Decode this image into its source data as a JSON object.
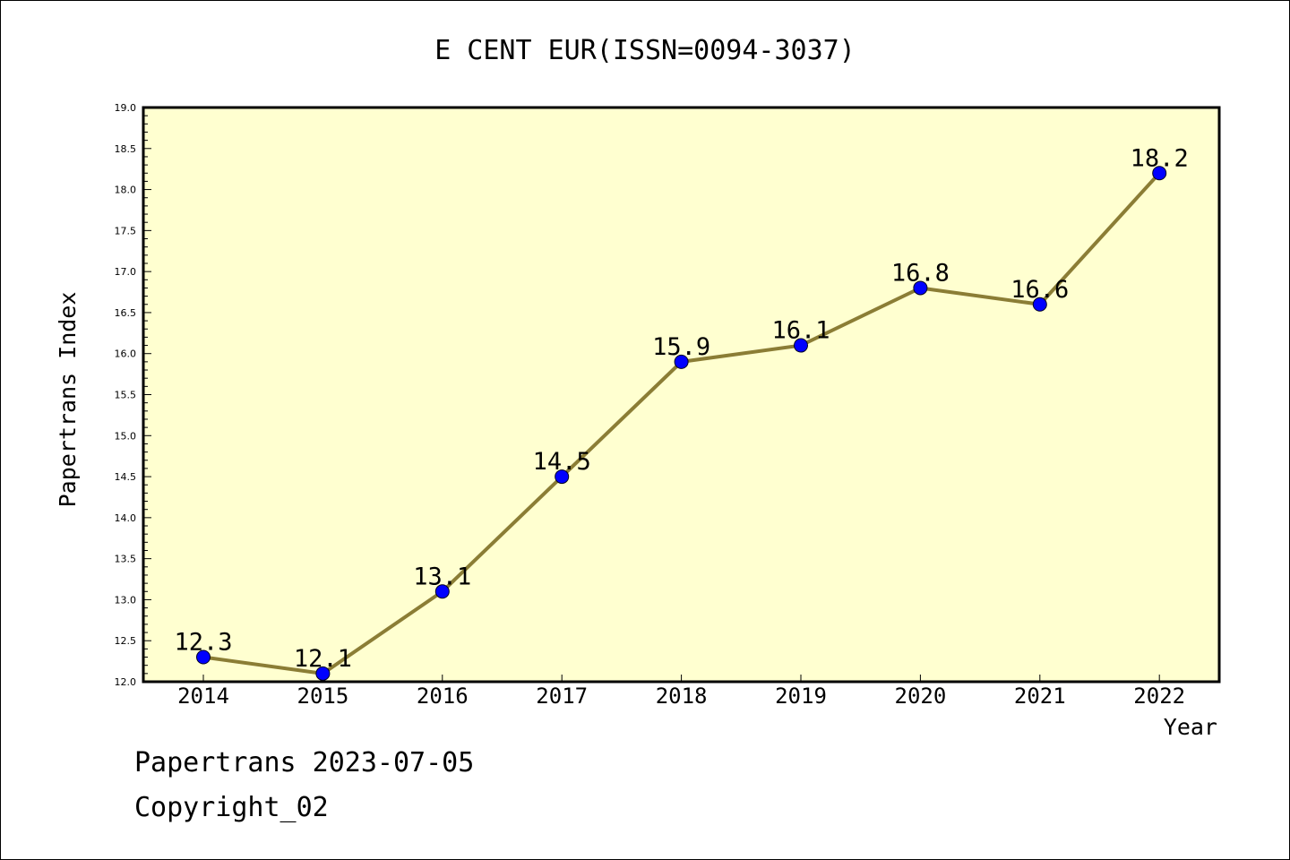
{
  "chart_data": {
    "type": "line",
    "title": "E CENT EUR(ISSN=0094-3037)",
    "xlabel": "Year",
    "ylabel": "Papertrans Index",
    "categories": [
      "2014",
      "2015",
      "2016",
      "2017",
      "2018",
      "2019",
      "2020",
      "2021",
      "2022"
    ],
    "series": [
      {
        "values": [
          12.3,
          12.1,
          13.1,
          14.5,
          15.9,
          16.1,
          16.8,
          16.6,
          18.2
        ],
        "data_labels": [
          "12.3",
          "12.1",
          "13.1",
          "14.5",
          "15.9",
          "16.1",
          "16.8",
          "16.6",
          "18.2"
        ]
      }
    ],
    "ylim": [
      12.0,
      19.0
    ],
    "yticks": [
      "12.0",
      "12.5",
      "13.0",
      "13.5",
      "14.0",
      "14.5",
      "15.0",
      "15.5",
      "16.0",
      "16.5",
      "17.0",
      "17.5",
      "18.0",
      "18.5",
      "19.0"
    ],
    "grid": false,
    "colors": {
      "plot_background": "#ffffd0",
      "line": "#8b7d35",
      "marker": "#0000ff"
    }
  },
  "footer": {
    "line1": "Papertrans 2023-07-05",
    "line2": "Copyright_02"
  }
}
